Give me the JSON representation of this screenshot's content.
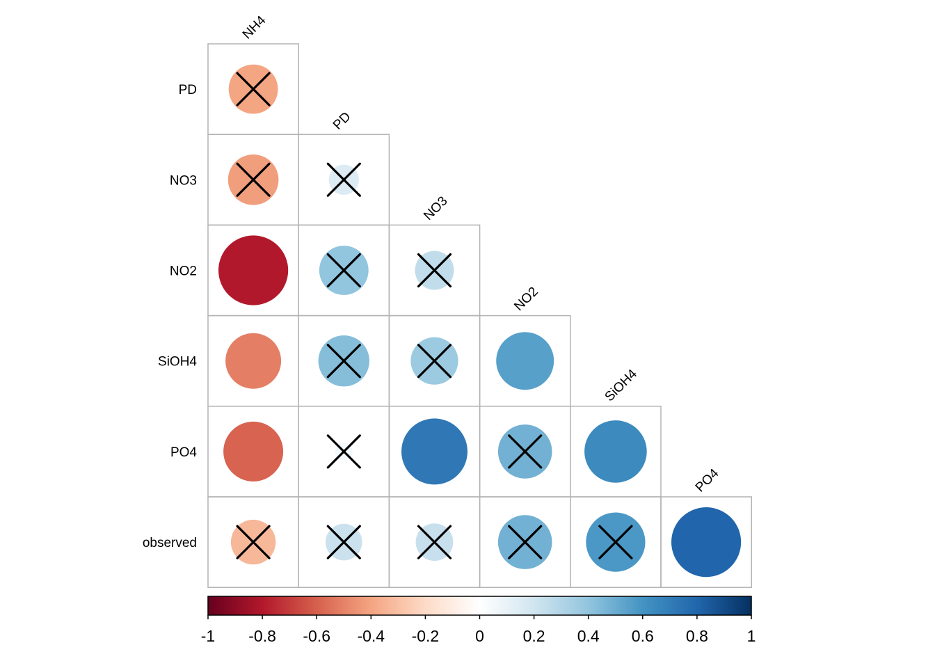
{
  "chart_data": {
    "type": "heatmap",
    "subtype": "corrplot-lower-circle",
    "title": "",
    "row_labels": [
      "PD",
      "NO3",
      "NO2",
      "SiOH4",
      "PO4",
      "observed"
    ],
    "col_labels": [
      "NH4",
      "PD",
      "NO3",
      "NO2",
      "SiOH4",
      "PO4"
    ],
    "cells": [
      {
        "row": "PD",
        "col": "NH4",
        "value": -0.4,
        "insignificant": true
      },
      {
        "row": "NO3",
        "col": "NH4",
        "value": -0.42,
        "insignificant": true
      },
      {
        "row": "NO3",
        "col": "PD",
        "value": 0.15,
        "insignificant": true
      },
      {
        "row": "NO2",
        "col": "NH4",
        "value": -0.8,
        "insignificant": false
      },
      {
        "row": "NO2",
        "col": "PD",
        "value": 0.4,
        "insignificant": true
      },
      {
        "row": "NO2",
        "col": "NO3",
        "value": 0.25,
        "insignificant": true
      },
      {
        "row": "SiOH4",
        "col": "NH4",
        "value": -0.51,
        "insignificant": false
      },
      {
        "row": "SiOH4",
        "col": "PD",
        "value": 0.43,
        "insignificant": true
      },
      {
        "row": "SiOH4",
        "col": "NO3",
        "value": 0.37,
        "insignificant": true
      },
      {
        "row": "SiOH4",
        "col": "NO2",
        "value": 0.55,
        "insignificant": false
      },
      {
        "row": "PO4",
        "col": "NH4",
        "value": -0.59,
        "insignificant": false
      },
      {
        "row": "PO4",
        "col": "PD",
        "value": 0.05,
        "insignificant": true
      },
      {
        "row": "PO4",
        "col": "NO3",
        "value": 0.72,
        "insignificant": false
      },
      {
        "row": "PO4",
        "col": "NO2",
        "value": 0.48,
        "insignificant": true
      },
      {
        "row": "PO4",
        "col": "SiOH4",
        "value": 0.64,
        "insignificant": false
      },
      {
        "row": "observed",
        "col": "NH4",
        "value": -0.33,
        "insignificant": true
      },
      {
        "row": "observed",
        "col": "PD",
        "value": 0.22,
        "insignificant": true
      },
      {
        "row": "observed",
        "col": "NO3",
        "value": 0.23,
        "insignificant": true
      },
      {
        "row": "observed",
        "col": "NO2",
        "value": 0.48,
        "insignificant": true
      },
      {
        "row": "observed",
        "col": "SiOH4",
        "value": 0.58,
        "insignificant": true
      },
      {
        "row": "observed",
        "col": "PO4",
        "value": 0.8,
        "insignificant": false
      }
    ],
    "colorbar": {
      "range": [
        -1,
        1
      ],
      "ticks": [
        -1,
        -0.8,
        -0.6,
        -0.4,
        -0.2,
        0,
        0.2,
        0.4,
        0.6,
        0.8,
        1
      ],
      "tick_labels": [
        "-1",
        "-0.8",
        "-0.6",
        "-0.4",
        "-0.2",
        "0",
        "0.2",
        "0.4",
        "0.6",
        "0.8",
        "1"
      ],
      "placement": "bottom",
      "palette": [
        "#67001f",
        "#b2182b",
        "#d6604d",
        "#f4a582",
        "#fddbc7",
        "#ffffff",
        "#d1e5f0",
        "#92c5de",
        "#4393c3",
        "#2166ac",
        "#053061"
      ]
    },
    "grid": true,
    "insignificant_marker": "cross",
    "legend": "bottom"
  }
}
